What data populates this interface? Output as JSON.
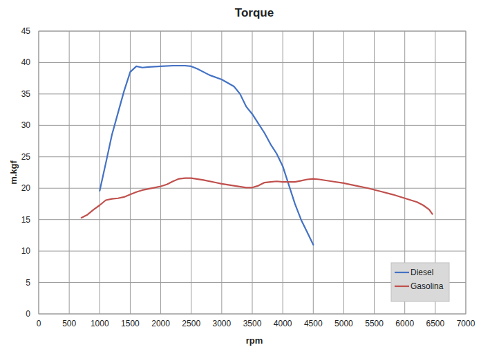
{
  "chart_data": {
    "type": "line",
    "title": "Torque",
    "x_label": "rpm",
    "y_label": "m.kgf",
    "xlim": [
      0,
      7000
    ],
    "xticks": [
      0,
      500,
      1000,
      1500,
      2000,
      2500,
      3000,
      3500,
      4000,
      4500,
      5000,
      5500,
      6000,
      6500,
      7000
    ],
    "ylim": [
      0,
      45
    ],
    "yticks": [
      0,
      5,
      10,
      15,
      20,
      25,
      30,
      35,
      40,
      45
    ],
    "grid": true,
    "legend": "lower right",
    "series": [
      {
        "name": "Diesel",
        "color": "#4472c4",
        "x": [
          1000,
          1100,
          1200,
          1300,
          1400,
          1500,
          1600,
          1700,
          1800,
          2000,
          2200,
          2300,
          2400,
          2500,
          2600,
          2800,
          3000,
          3200,
          3300,
          3400,
          3500,
          3600,
          3700,
          3800,
          3900,
          4000,
          4100,
          4200,
          4300,
          4400,
          4500
        ],
        "values": [
          19.6,
          24,
          28.5,
          32,
          35.5,
          38.5,
          39.4,
          39.2,
          39.3,
          39.4,
          39.5,
          39.5,
          39.5,
          39.4,
          39,
          38,
          37.3,
          36.2,
          35,
          33,
          31.8,
          30.3,
          28.8,
          27,
          25.5,
          23.5,
          20.5,
          17.5,
          15,
          13,
          11
        ]
      },
      {
        "name": "Gasolina",
        "color": "#c0504d",
        "x": [
          700,
          800,
          900,
          1000,
          1100,
          1200,
          1300,
          1400,
          1500,
          1600,
          1700,
          1800,
          1900,
          2000,
          2100,
          2200,
          2300,
          2400,
          2500,
          2700,
          2900,
          3000,
          3200,
          3400,
          3500,
          3600,
          3700,
          3800,
          3900,
          4000,
          4200,
          4300,
          4400,
          4500,
          4600,
          4800,
          5000,
          5200,
          5400,
          5600,
          5800,
          6000,
          6200,
          6300,
          6400,
          6450
        ],
        "values": [
          15.3,
          15.8,
          16.6,
          17.3,
          18.1,
          18.3,
          18.4,
          18.6,
          19,
          19.4,
          19.7,
          19.9,
          20.1,
          20.3,
          20.6,
          21.1,
          21.5,
          21.6,
          21.6,
          21.3,
          20.9,
          20.7,
          20.4,
          20.1,
          20.1,
          20.4,
          20.9,
          21,
          21.1,
          21,
          21,
          21.2,
          21.4,
          21.5,
          21.4,
          21.1,
          20.8,
          20.4,
          20,
          19.5,
          19,
          18.4,
          17.8,
          17.3,
          16.6,
          15.9
        ]
      }
    ]
  }
}
